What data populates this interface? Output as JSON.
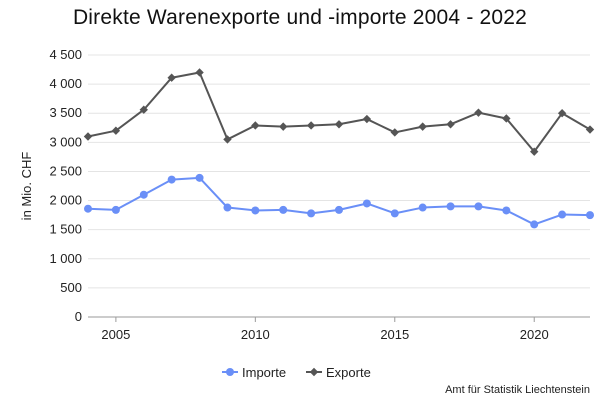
{
  "chart_data": {
    "type": "line",
    "title": "Direkte Warenexporte und -importe 2004 - 2022",
    "xlabel": "",
    "ylabel": "in Mio. CHF",
    "x": [
      2004,
      2005,
      2006,
      2007,
      2008,
      2009,
      2010,
      2011,
      2012,
      2013,
      2014,
      2015,
      2016,
      2017,
      2018,
      2019,
      2020,
      2021,
      2022
    ],
    "xlim": [
      2004,
      2022
    ],
    "xticks": [
      2005,
      2010,
      2015,
      2020
    ],
    "ylim": [
      0,
      4500
    ],
    "yticks": [
      0,
      500,
      1000,
      1500,
      2000,
      2500,
      3000,
      3500,
      4000,
      4500
    ],
    "ytick_labels": [
      "0",
      "500",
      "1 000",
      "1 500",
      "2 000",
      "2 500",
      "3 000",
      "3 500",
      "4 000",
      "4 500"
    ],
    "grid": "horizontal",
    "legend_position": "bottom",
    "series": [
      {
        "name": "Importe",
        "color": "#6a8ff7",
        "marker": "circle",
        "values": [
          1860,
          1840,
          2100,
          2360,
          2390,
          1880,
          1830,
          1840,
          1780,
          1840,
          1950,
          1780,
          1880,
          1900,
          1900,
          1830,
          1590,
          1760,
          1750
        ]
      },
      {
        "name": "Exporte",
        "color": "#555555",
        "marker": "diamond",
        "values": [
          3100,
          3200,
          3560,
          4110,
          4200,
          3050,
          3290,
          3270,
          3290,
          3310,
          3400,
          3170,
          3270,
          3310,
          3510,
          3410,
          2840,
          3500,
          3220
        ]
      }
    ],
    "source": "Amt für Statistik Liechtenstein"
  }
}
